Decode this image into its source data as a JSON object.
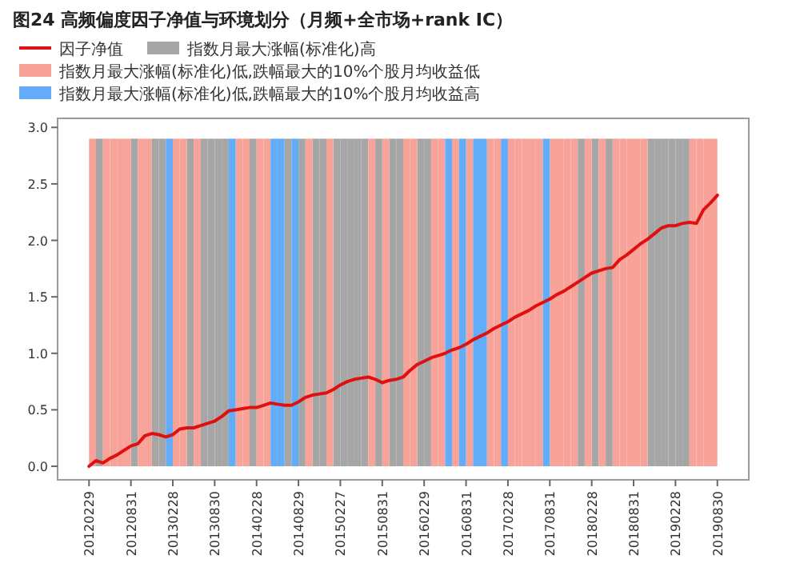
{
  "chart_data": {
    "type": "bar",
    "title": "图24 高频偏度因子净值与环境划分（月频+全市场+rank IC）",
    "categories": [
      "20120229",
      null,
      null,
      null,
      null,
      null,
      "20120831",
      null,
      null,
      null,
      null,
      null,
      "20130228",
      null,
      null,
      null,
      null,
      null,
      "20130830",
      null,
      null,
      null,
      null,
      null,
      "20140228",
      null,
      null,
      null,
      null,
      null,
      "20140829",
      null,
      null,
      null,
      null,
      null,
      "20150227",
      null,
      null,
      null,
      null,
      null,
      "20150831",
      null,
      null,
      null,
      null,
      null,
      "20160229",
      null,
      null,
      null,
      null,
      null,
      "20160831",
      null,
      null,
      null,
      null,
      null,
      "20170228",
      null,
      null,
      null,
      null,
      null,
      "20170831",
      null,
      null,
      null,
      null,
      null,
      "20180228",
      null,
      null,
      null,
      null,
      null,
      "20180831",
      null,
      null,
      null,
      null,
      null,
      "20190228",
      null,
      null,
      null,
      null,
      null,
      "20190830"
    ],
    "series": [
      {
        "name": "因子净值",
        "type": "line",
        "color": "#e01010",
        "values": [
          0,
          0.05,
          0.03,
          0.07,
          0.1,
          0.14,
          0.18,
          0.2,
          0.27,
          0.29,
          0.28,
          0.26,
          0.28,
          0.33,
          0.34,
          0.34,
          0.36,
          0.38,
          0.4,
          0.44,
          0.49,
          0.5,
          0.51,
          0.52,
          0.52,
          0.54,
          0.56,
          0.55,
          0.54,
          0.54,
          0.57,
          0.61,
          0.63,
          0.64,
          0.65,
          0.68,
          0.72,
          0.75,
          0.77,
          0.78,
          0.79,
          0.77,
          0.74,
          0.76,
          0.77,
          0.79,
          0.85,
          0.9,
          0.93,
          0.96,
          0.98,
          1.0,
          1.03,
          1.05,
          1.08,
          1.12,
          1.15,
          1.18,
          1.22,
          1.25,
          1.28,
          1.32,
          1.35,
          1.38,
          1.42,
          1.45,
          1.48,
          1.52,
          1.55,
          1.59,
          1.63,
          1.67,
          1.71,
          1.73,
          1.75,
          1.76,
          1.83,
          1.87,
          1.92,
          1.97,
          2.01,
          2.06,
          2.11,
          2.13,
          2.13,
          2.15,
          2.16,
          2.15,
          2.27,
          2.33,
          2.4
        ]
      },
      {
        "name": "指数月最大涨幅(标准化)高",
        "color": "#a6a6a6",
        "values": [
          null,
          2.9,
          null,
          null,
          null,
          null,
          2.9,
          null,
          null,
          2.9,
          2.9,
          null,
          null,
          null,
          2.9,
          null,
          2.9,
          2.9,
          2.9,
          2.9,
          null,
          null,
          null,
          2.9,
          null,
          null,
          null,
          null,
          2.9,
          null,
          2.9,
          null,
          2.9,
          2.9,
          null,
          2.9,
          2.9,
          2.9,
          2.9,
          2.9,
          null,
          2.9,
          null,
          2.9,
          2.9,
          null,
          null,
          2.9,
          2.9,
          null,
          null,
          null,
          null,
          null,
          null,
          null,
          null,
          null,
          null,
          null,
          null,
          null,
          null,
          null,
          null,
          null,
          null,
          null,
          null,
          null,
          2.9,
          null,
          2.9,
          null,
          2.9,
          null,
          null,
          null,
          null,
          null,
          2.9,
          2.9,
          2.9,
          2.9,
          2.9,
          2.9,
          null,
          null,
          null,
          null,
          null
        ]
      },
      {
        "name": "指数月最大涨幅(标准化)低,跌幅最大的10%个股月均收益低",
        "color": "#f8a39a",
        "values": [
          2.9,
          null,
          2.9,
          2.9,
          2.9,
          2.9,
          null,
          2.9,
          2.9,
          null,
          null,
          null,
          2.9,
          2.9,
          null,
          2.9,
          null,
          null,
          null,
          null,
          null,
          2.9,
          2.9,
          null,
          2.9,
          2.9,
          null,
          null,
          null,
          null,
          null,
          2.9,
          null,
          null,
          2.9,
          null,
          null,
          null,
          null,
          null,
          2.9,
          null,
          2.9,
          null,
          null,
          2.9,
          2.9,
          null,
          null,
          2.9,
          2.9,
          null,
          2.9,
          null,
          2.9,
          null,
          null,
          2.9,
          2.9,
          null,
          2.9,
          2.9,
          2.9,
          2.9,
          2.9,
          null,
          2.9,
          2.9,
          2.9,
          2.9,
          null,
          2.9,
          null,
          2.9,
          null,
          2.9,
          2.9,
          2.9,
          2.9,
          2.9,
          null,
          null,
          null,
          null,
          null,
          null,
          2.9,
          2.9,
          2.9,
          2.9,
          null
        ]
      },
      {
        "name": "指数月最大涨幅(标准化)低,跌幅最大的10%个股月均收益高",
        "color": "#63adf8",
        "values": [
          null,
          null,
          null,
          null,
          null,
          null,
          null,
          null,
          null,
          null,
          null,
          2.9,
          null,
          null,
          null,
          null,
          null,
          null,
          null,
          null,
          2.9,
          null,
          null,
          null,
          null,
          null,
          2.9,
          2.9,
          null,
          2.9,
          null,
          null,
          null,
          null,
          null,
          null,
          null,
          null,
          null,
          null,
          null,
          null,
          null,
          null,
          null,
          null,
          null,
          null,
          null,
          null,
          null,
          2.9,
          null,
          2.9,
          null,
          2.9,
          2.9,
          null,
          null,
          2.9,
          null,
          null,
          null,
          null,
          null,
          2.9,
          null,
          null,
          null,
          null,
          null,
          null,
          null,
          null,
          null,
          null,
          null,
          null,
          null,
          null,
          null,
          null,
          null,
          null,
          null,
          null,
          null,
          null,
          null,
          null,
          null
        ]
      }
    ],
    "ylim": [
      -0.12,
      3.08
    ],
    "yticks": [
      {
        "value": 0,
        "label": "0.0"
      },
      0.5,
      {
        "value": 1,
        "label": "1.0"
      },
      1.5,
      {
        "value": 2,
        "label": "2.0"
      },
      2.5,
      {
        "value": 3,
        "label": "3.0"
      }
    ],
    "legend": "top"
  }
}
